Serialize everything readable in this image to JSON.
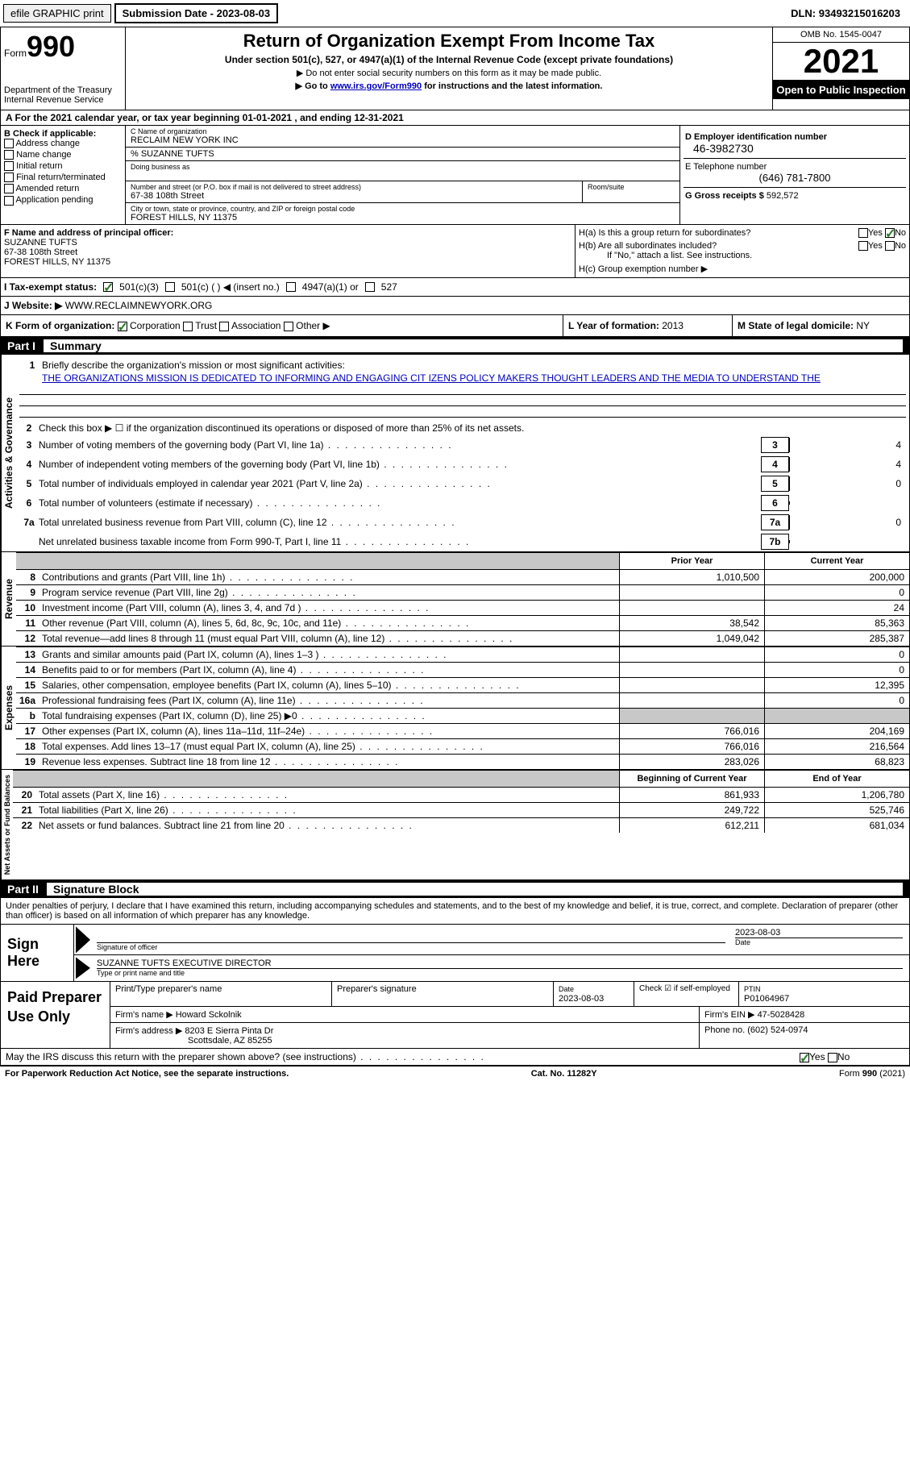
{
  "topbar": {
    "efile": "efile GRAPHIC print",
    "submission_label": "Submission Date - ",
    "submission_date": "2023-08-03",
    "dln_label": "DLN: ",
    "dln": "93493215016203"
  },
  "header": {
    "form_label": "Form",
    "form_number": "990",
    "title": "Return of Organization Exempt From Income Tax",
    "subtitle": "Under section 501(c), 527, or 4947(a)(1) of the Internal Revenue Code (except private foundations)",
    "note1": "▶ Do not enter social security numbers on this form as it may be made public.",
    "note2_pre": "▶ Go to ",
    "note2_link": "www.irs.gov/Form990",
    "note2_post": " for instructions and the latest information.",
    "dept": "Department of the Treasury",
    "irs": "Internal Revenue Service",
    "omb": "OMB No. 1545-0047",
    "year": "2021",
    "open": "Open to Public Inspection"
  },
  "rowA": {
    "text_pre": "A For the 2021 calendar year, or tax year beginning ",
    "begin": "01-01-2021",
    "mid": "   , and ending ",
    "end": "12-31-2021"
  },
  "colB": {
    "header": "B Check if applicable:",
    "addr_change": "Address change",
    "name_change": "Name change",
    "initial": "Initial return",
    "final": "Final return/terminated",
    "amended": "Amended return",
    "app_pending": "Application pending"
  },
  "colC": {
    "name_label": "C Name of organization",
    "name": "RECLAIM NEW YORK INC",
    "care_of": "% SUZANNE TUFTS",
    "dba_label": "Doing business as",
    "street_label": "Number and street (or P.O. box if mail is not delivered to street address)",
    "room_label": "Room/suite",
    "street": "67-38 108th Street",
    "city_label": "City or town, state or province, country, and ZIP or foreign postal code",
    "city": "FOREST HILLS, NY  11375"
  },
  "colD": {
    "ein_label": "D Employer identification number",
    "ein": "46-3982730",
    "phone_label": "E Telephone number",
    "phone": "(646) 781-7800",
    "receipts_label": "G Gross receipts $ ",
    "receipts": "592,572"
  },
  "sectionF": {
    "label": "F Name and address of principal officer:",
    "name": "SUZANNE TUFTS",
    "street": "67-38 108th Street",
    "city": "FOREST HILLS, NY  11375"
  },
  "sectionH": {
    "ha": "H(a)  Is this a group return for subordinates?",
    "hb": "H(b)  Are all subordinates included?",
    "hb_note": "If \"No,\" attach a list. See instructions.",
    "hc": "H(c)  Group exemption number ▶",
    "yes": "Yes",
    "no": "No"
  },
  "taxStatus": {
    "label": "I   Tax-exempt status:",
    "s501c3": "501(c)(3)",
    "s501c": "501(c) (  ) ◀ (insert no.)",
    "s4947": "4947(a)(1) or",
    "s527": "527"
  },
  "website": {
    "label": "J   Website: ▶",
    "value": "  WWW.RECLAIMNEWYORK.ORG"
  },
  "orgRow": {
    "k_label": "K Form of organization:",
    "corp": "Corporation",
    "trust": "Trust",
    "assoc": "Association",
    "other": "Other ▶",
    "l_label": "L Year of formation: ",
    "l_val": "2013",
    "m_label": "M State of legal domicile: ",
    "m_val": "NY"
  },
  "part1": {
    "label": "Part I",
    "title": "Summary"
  },
  "activities": {
    "vlabel": "Activities & Governance",
    "l1": "Briefly describe the organization's mission or most significant activities:",
    "mission": "THE ORGANIZATIONS MISSION IS DEDICATED TO INFORMING AND ENGAGING CIT IZENS POLICY MAKERS THOUGHT LEADERS AND THE MEDIA TO UNDERSTAND THE",
    "l2": "Check this box ▶ ☐  if the organization discontinued its operations or disposed of more than 25% of its net assets.",
    "l3": "Number of voting members of the governing body (Part VI, line 1a)",
    "l3v": "4",
    "l4": "Number of independent voting members of the governing body (Part VI, line 1b)",
    "l4v": "4",
    "l5": "Total number of individuals employed in calendar year 2021 (Part V, line 2a)",
    "l5v": "0",
    "l6": "Total number of volunteers (estimate if necessary)",
    "l6v": "",
    "l7a": "Total unrelated business revenue from Part VIII, column (C), line 12",
    "l7av": "0",
    "l7b": "Net unrelated business taxable income from Form 990-T, Part I, line 11",
    "l7bv": ""
  },
  "cols": {
    "prior": "Prior Year",
    "current": "Current Year",
    "begin": "Beginning of Current Year",
    "end": "End of Year"
  },
  "revenue": {
    "vlabel": "Revenue",
    "rows": [
      {
        "n": "8",
        "d": "Contributions and grants (Part VIII, line 1h)",
        "py": "1,010,500",
        "cy": "200,000"
      },
      {
        "n": "9",
        "d": "Program service revenue (Part VIII, line 2g)",
        "py": "",
        "cy": "0"
      },
      {
        "n": "10",
        "d": "Investment income (Part VIII, column (A), lines 3, 4, and 7d )",
        "py": "",
        "cy": "24"
      },
      {
        "n": "11",
        "d": "Other revenue (Part VIII, column (A), lines 5, 6d, 8c, 9c, 10c, and 11e)",
        "py": "38,542",
        "cy": "85,363"
      },
      {
        "n": "12",
        "d": "Total revenue—add lines 8 through 11 (must equal Part VIII, column (A), line 12)",
        "py": "1,049,042",
        "cy": "285,387"
      }
    ]
  },
  "expenses": {
    "vlabel": "Expenses",
    "rows": [
      {
        "n": "13",
        "d": "Grants and similar amounts paid (Part IX, column (A), lines 1–3 )",
        "py": "",
        "cy": "0"
      },
      {
        "n": "14",
        "d": "Benefits paid to or for members (Part IX, column (A), line 4)",
        "py": "",
        "cy": "0"
      },
      {
        "n": "15",
        "d": "Salaries, other compensation, employee benefits (Part IX, column (A), lines 5–10)",
        "py": "",
        "cy": "12,395"
      },
      {
        "n": "16a",
        "d": "Professional fundraising fees (Part IX, column (A), line 11e)",
        "py": "",
        "cy": "0"
      },
      {
        "n": "b",
        "d": "Total fundraising expenses (Part IX, column (D), line 25) ▶0",
        "py": "gray",
        "cy": "gray"
      },
      {
        "n": "17",
        "d": "Other expenses (Part IX, column (A), lines 11a–11d, 11f–24e)",
        "py": "766,016",
        "cy": "204,169"
      },
      {
        "n": "18",
        "d": "Total expenses. Add lines 13–17 (must equal Part IX, column (A), line 25)",
        "py": "766,016",
        "cy": "216,564"
      },
      {
        "n": "19",
        "d": "Revenue less expenses. Subtract line 18 from line 12",
        "py": "283,026",
        "cy": "68,823"
      }
    ]
  },
  "netassets": {
    "vlabel": "Net Assets or Fund Balances",
    "rows": [
      {
        "n": "20",
        "d": "Total assets (Part X, line 16)",
        "py": "861,933",
        "cy": "1,206,780"
      },
      {
        "n": "21",
        "d": "Total liabilities (Part X, line 26)",
        "py": "249,722",
        "cy": "525,746"
      },
      {
        "n": "22",
        "d": "Net assets or fund balances. Subtract line 21 from line 20",
        "py": "612,211",
        "cy": "681,034"
      }
    ]
  },
  "part2": {
    "label": "Part II",
    "title": "Signature Block",
    "penalty": "Under penalties of perjury, I declare that I have examined this return, including accompanying schedules and statements, and to the best of my knowledge and belief, it is true, correct, and complete. Declaration of preparer (other than officer) is based on all information of which preparer has any knowledge."
  },
  "sign": {
    "label": "Sign Here",
    "sig_officer": "Signature of officer",
    "date": "2023-08-03",
    "date_label": "Date",
    "name": "SUZANNE TUFTS  EXECUTIVE DIRECTOR",
    "name_label": "Type or print name and title"
  },
  "prep": {
    "label": "Paid Preparer Use Only",
    "print_name": "Print/Type preparer's name",
    "sig": "Preparer's signature",
    "date_label": "Date",
    "date": "2023-08-03",
    "check_label": "Check ☑ if self-employed",
    "ptin_label": "PTIN",
    "ptin": "P01064967",
    "firm_name_label": "Firm's name     ▶ ",
    "firm_name": "Howard Sckolnik",
    "firm_ein_label": "Firm's EIN ▶ ",
    "firm_ein": "47-5028428",
    "firm_addr_label": "Firm's address ▶ ",
    "firm_addr1": "8203 E Sierra Pinta Dr",
    "firm_addr2": "Scottsdale, AZ  85255",
    "phone_label": "Phone no. ",
    "phone": "(602) 524-0974"
  },
  "discuss": {
    "text": "May the IRS discuss this return with the preparer shown above? (see instructions)",
    "yes": "Yes",
    "no": "No"
  },
  "footer": {
    "left": "For Paperwork Reduction Act Notice, see the separate instructions.",
    "mid": "Cat. No. 11282Y",
    "right": "Form 990 (2021)"
  }
}
